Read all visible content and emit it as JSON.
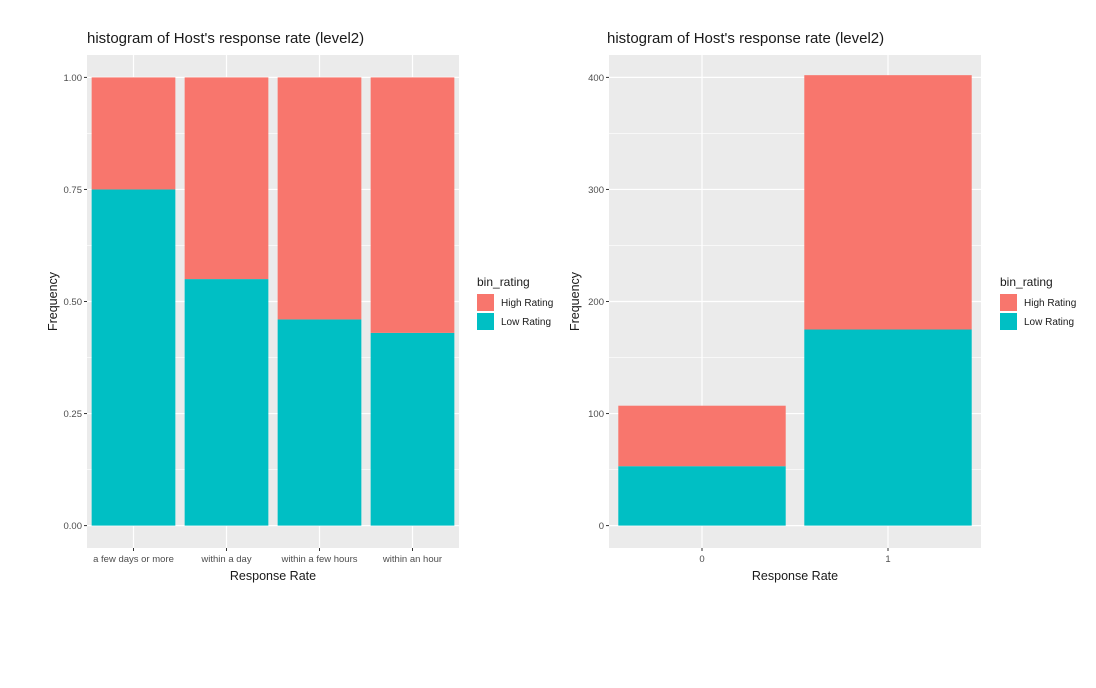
{
  "chart_data": [
    {
      "type": "bar",
      "stacked": true,
      "title": "histogram of Host's response rate (level2)",
      "xlabel": "Response Rate",
      "ylabel": "Frequency",
      "categories": [
        "a few days or more",
        "within a day",
        "within a few hours",
        "within an hour"
      ],
      "series": [
        {
          "name": "Low Rating",
          "color": "#00BA38",
          "values": [
            0.75,
            0.55,
            0.46,
            0.43
          ]
        },
        {
          "name": "High Rating",
          "color": "#F8766D",
          "values": [
            0.25,
            0.45,
            0.54,
            0.57
          ]
        }
      ],
      "ylim": [
        0,
        1
      ],
      "yticks": [
        0.0,
        0.25,
        0.5,
        0.75,
        1.0
      ],
      "ytick_labels": [
        "0.00",
        "0.25",
        "0.50",
        "0.75",
        "1.00"
      ],
      "grid": true,
      "legend": {
        "title": "bin_rating",
        "position": "right",
        "entries": [
          "High Rating",
          "Low Rating"
        ]
      }
    },
    {
      "type": "bar",
      "stacked": true,
      "title": "histogram of Host's response rate (level2)",
      "xlabel": "Response Rate",
      "ylabel": "Frequency",
      "categories": [
        "0",
        "1"
      ],
      "series": [
        {
          "name": "Low Rating",
          "color": "#00BA38",
          "values": [
            53,
            175
          ]
        },
        {
          "name": "High Rating",
          "color": "#F8766D",
          "values": [
            54,
            227
          ]
        }
      ],
      "ylim": [
        0,
        400
      ],
      "yticks": [
        0,
        100,
        200,
        300,
        400
      ],
      "ytick_labels": [
        "0",
        "100",
        "200",
        "300",
        "400"
      ],
      "grid": true,
      "legend": {
        "title": "bin_rating",
        "position": "right",
        "entries": [
          "High Rating",
          "Low Rating"
        ]
      }
    }
  ],
  "colors": {
    "high": "#F8766D",
    "low": "#00BFC4",
    "panel": "#EBEBEB",
    "grid": "#FFFFFF"
  }
}
